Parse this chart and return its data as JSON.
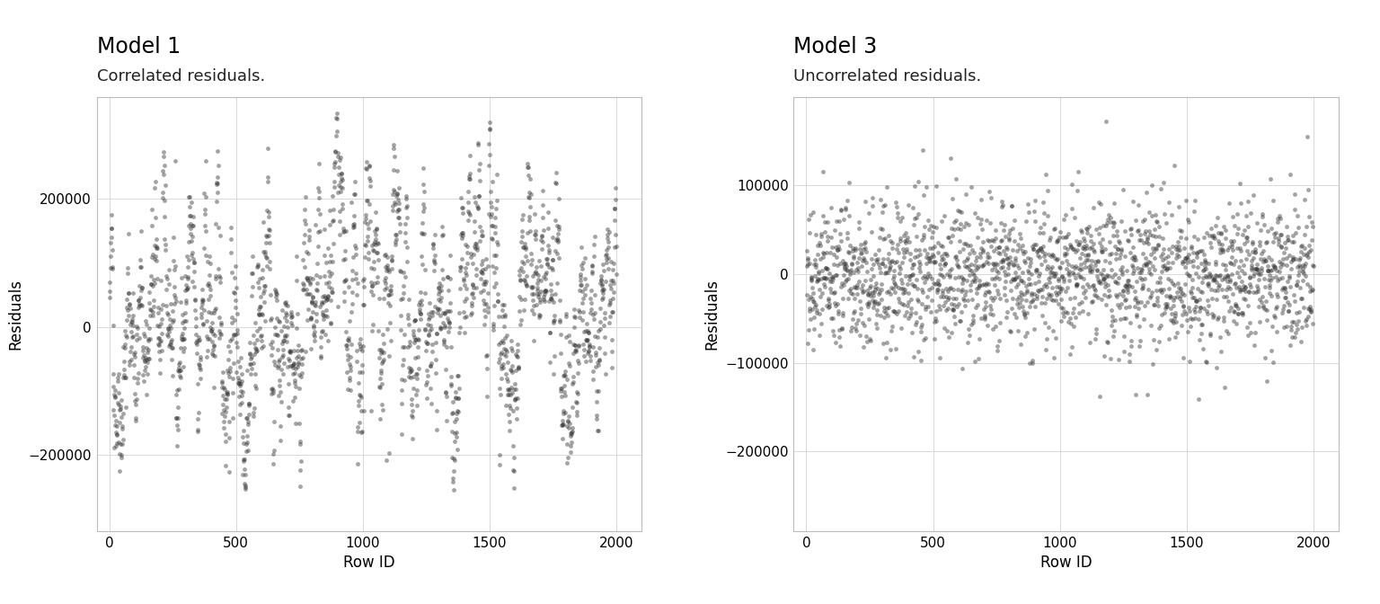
{
  "title1": "Model 1",
  "subtitle1": "Correlated residuals.",
  "title2": "Model 3",
  "subtitle2": "Uncorrelated residuals.",
  "xlabel": "Row ID",
  "ylabel": "Residuals",
  "xlim": [
    -50,
    2100
  ],
  "ylim1": [
    -320000,
    360000
  ],
  "ylim2": [
    -290000,
    200000
  ],
  "yticks1": [
    -200000,
    0,
    200000
  ],
  "yticks2": [
    -200000,
    -100000,
    0,
    100000
  ],
  "xticks": [
    0,
    500,
    1000,
    1500,
    2000
  ],
  "n_points": 2000,
  "seed1": 42,
  "seed2": 77,
  "dot_color": "#333333",
  "dot_alpha": 0.45,
  "dot_size": 12,
  "background_color": "#ffffff",
  "panel_color": "#ffffff",
  "grid_color": "#d8d8d8",
  "title_fontsize": 17,
  "subtitle_fontsize": 13,
  "axis_label_fontsize": 12,
  "tick_fontsize": 11,
  "rho": 0.92,
  "sigma1_base": 45000,
  "sigma2_base": 18000
}
